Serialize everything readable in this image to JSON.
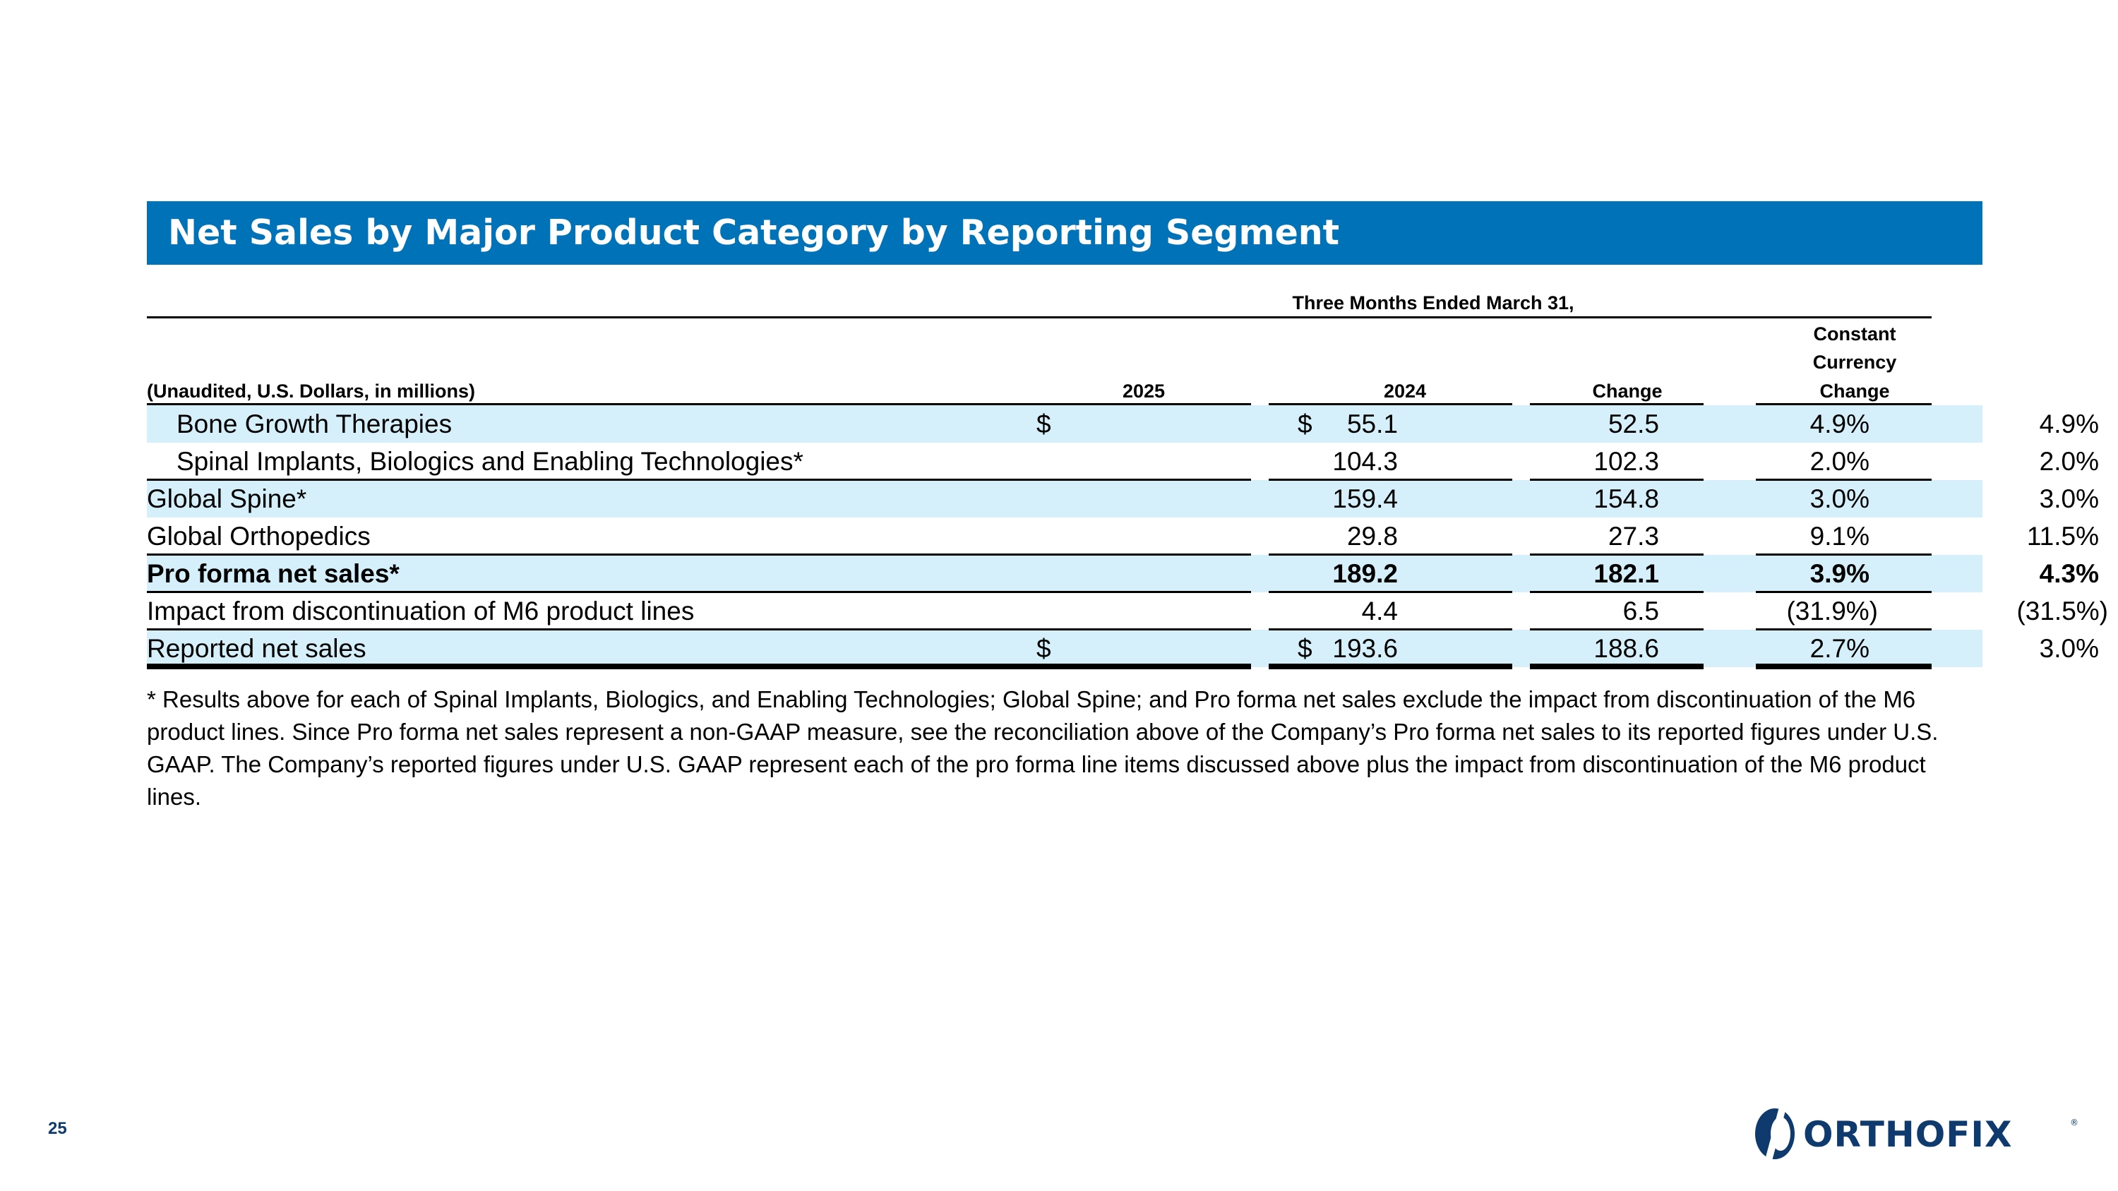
{
  "title": "Net Sales by Major Product Category by Reporting Segment",
  "table": {
    "period_header": "Three Months Ended March 31,",
    "unit_label": "(Unaudited, U.S. Dollars, in millions)",
    "columns": {
      "y2025": "2025",
      "y2024": "2024",
      "change": "Change",
      "cc_line1": "Constant",
      "cc_line2": "Currency",
      "cc_line3": "Change"
    },
    "currency_symbol": "$",
    "rows": [
      {
        "label": "Bone Growth Therapies",
        "v2025": "55.1",
        "v2024": "52.5",
        "change": "4.9%",
        "cc_change": "4.9%"
      },
      {
        "label": "Spinal Implants, Biologics and Enabling Technologies*",
        "v2025": "104.3",
        "v2024": "102.3",
        "change": "2.0%",
        "cc_change": "2.0%"
      },
      {
        "label": "Global Spine*",
        "v2025": "159.4",
        "v2024": "154.8",
        "change": "3.0%",
        "cc_change": "3.0%"
      },
      {
        "label": "Global Orthopedics",
        "v2025": "29.8",
        "v2024": "27.3",
        "change": "9.1%",
        "cc_change": "11.5%"
      },
      {
        "label": "Pro forma net sales*",
        "v2025": "189.2",
        "v2024": "182.1",
        "change": "3.9%",
        "cc_change": "4.3%"
      },
      {
        "label": "Impact from discontinuation of M6 product lines",
        "v2025": "4.4",
        "v2024": "6.5",
        "change": "(31.9%)",
        "cc_change": "(31.5%)"
      },
      {
        "label": "Reported net sales",
        "v2025": "193.6",
        "v2024": "188.6",
        "change": "2.7%",
        "cc_change": "3.0%"
      }
    ]
  },
  "footnote": "* Results above for each of Spinal Implants, Biologics, and Enabling Technologies; Global Spine; and Pro forma net sales exclude the impact from discontinuation of the M6 product lines. Since Pro forma net sales represent a non-GAAP measure, see the reconciliation above of the Company’s Pro forma net sales to its reported figures under U.S. GAAP. The Company’s reported figures under U.S. GAAP represent each of the pro forma line items discussed above plus the impact from discontinuation of the M6 product lines.",
  "page_number": "25",
  "logo_text": "ORTHOFIX",
  "colors": {
    "title_bar": "#0072b8",
    "row_band": "#d6f0fb",
    "logo": "#0e3a6e"
  }
}
